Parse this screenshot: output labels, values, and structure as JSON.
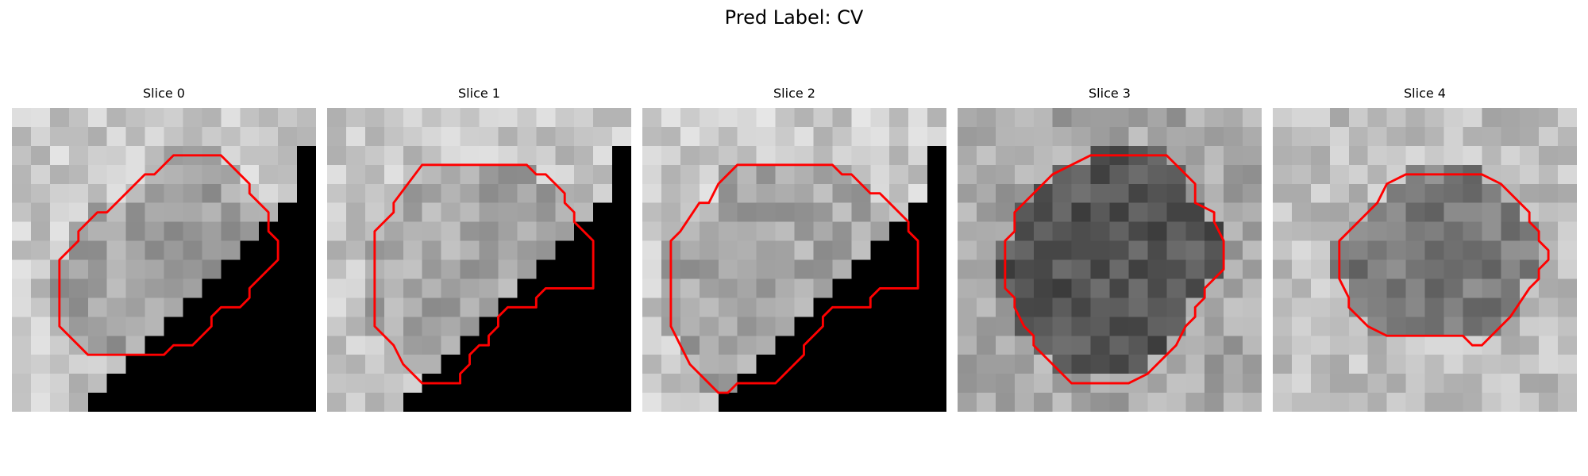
{
  "figure": {
    "title": "Pred Label: CV"
  },
  "panels": [
    {
      "title": "Slice 0",
      "shade": "#c8c8c8",
      "lesion": "#a2a2a2",
      "blocked": true,
      "contour": [
        [
          8.5,
          2.5
        ],
        [
          11,
          2.5
        ],
        [
          12.5,
          4
        ],
        [
          12.5,
          4.5
        ],
        [
          13.5,
          5.5
        ],
        [
          13.5,
          6.5
        ],
        [
          14,
          7
        ],
        [
          14,
          8
        ],
        [
          12.5,
          9.5
        ],
        [
          12.5,
          10
        ],
        [
          12,
          10.5
        ],
        [
          11,
          10.5
        ],
        [
          10.5,
          11
        ],
        [
          10.5,
          11.5
        ],
        [
          9.5,
          12.5
        ],
        [
          8.5,
          12.5
        ],
        [
          8,
          13
        ],
        [
          7.5,
          13
        ],
        [
          4,
          13
        ],
        [
          2.5,
          11.5
        ],
        [
          2.5,
          8
        ],
        [
          3.5,
          7
        ],
        [
          3.5,
          6.5
        ],
        [
          4.5,
          5.5
        ],
        [
          5,
          5.5
        ],
        [
          6.5,
          4
        ],
        [
          7,
          3.5
        ],
        [
          7.5,
          3.5
        ]
      ]
    },
    {
      "title": "Slice 1",
      "shade": "#c6c6c6",
      "lesion": "#a7a7a7",
      "blocked": true,
      "contour": [
        [
          5,
          3
        ],
        [
          10.5,
          3
        ],
        [
          11,
          3.5
        ],
        [
          11.5,
          3.5
        ],
        [
          12.5,
          4.5
        ],
        [
          12.5,
          5
        ],
        [
          13,
          5.5
        ],
        [
          13,
          6
        ],
        [
          14,
          7
        ],
        [
          14,
          9.5
        ],
        [
          11.5,
          9.5
        ],
        [
          11,
          10
        ],
        [
          11,
          10.5
        ],
        [
          9.5,
          10.5
        ],
        [
          9,
          11
        ],
        [
          9,
          11.5
        ],
        [
          8.5,
          12
        ],
        [
          8.5,
          12.5
        ],
        [
          8,
          12.5
        ],
        [
          7.5,
          13
        ],
        [
          7.5,
          13.5
        ],
        [
          7,
          14
        ],
        [
          7,
          14.5
        ],
        [
          5,
          14.5
        ],
        [
          4,
          13.5
        ],
        [
          3.5,
          12.5
        ],
        [
          2.5,
          11.5
        ],
        [
          2.5,
          10.5
        ],
        [
          2.5,
          6.5
        ],
        [
          3.5,
          5.5
        ],
        [
          3.5,
          5
        ]
      ]
    },
    {
      "title": "Slice 2",
      "shade": "#cbcbcb",
      "lesion": "#a6a6a6",
      "blocked": true,
      "contour": [
        [
          5,
          3
        ],
        [
          10,
          3
        ],
        [
          10.5,
          3.5
        ],
        [
          11,
          3.5
        ],
        [
          12,
          4.5
        ],
        [
          12.5,
          4.5
        ],
        [
          13,
          5
        ],
        [
          14,
          6
        ],
        [
          14,
          6.5
        ],
        [
          14.5,
          7
        ],
        [
          14.5,
          8
        ],
        [
          14.5,
          9.5
        ],
        [
          12.5,
          9.5
        ],
        [
          12,
          10
        ],
        [
          12,
          10.5
        ],
        [
          10,
          10.5
        ],
        [
          9.5,
          11
        ],
        [
          9.5,
          11.5
        ],
        [
          9,
          12
        ],
        [
          8.5,
          12.5
        ],
        [
          8.5,
          13
        ],
        [
          8,
          13.5
        ],
        [
          7,
          14.5
        ],
        [
          5,
          14.5
        ],
        [
          4.5,
          15
        ],
        [
          4,
          15
        ],
        [
          2.5,
          13.5
        ],
        [
          2,
          12.5
        ],
        [
          1.5,
          11.5
        ],
        [
          1.5,
          9
        ],
        [
          1.5,
          7
        ],
        [
          2,
          6.5
        ],
        [
          3,
          5
        ],
        [
          3.5,
          5
        ],
        [
          4,
          4
        ]
      ]
    },
    {
      "title": "Slice 3",
      "shade": "#a8a8a8",
      "lesion": "#565656",
      "blocked": false,
      "contour": [
        [
          7,
          2.5
        ],
        [
          11,
          2.5
        ],
        [
          12,
          3.5
        ],
        [
          12.5,
          4
        ],
        [
          12.5,
          5
        ],
        [
          13.5,
          5.5
        ],
        [
          13.5,
          6
        ],
        [
          14,
          7
        ],
        [
          14,
          8
        ],
        [
          14,
          8.5
        ],
        [
          13.5,
          9
        ],
        [
          13,
          9.5
        ],
        [
          13,
          10
        ],
        [
          12.5,
          10.5
        ],
        [
          12.5,
          11
        ],
        [
          12,
          11.5
        ],
        [
          11.5,
          12.5
        ],
        [
          11,
          13
        ],
        [
          10.5,
          13.5
        ],
        [
          10,
          14
        ],
        [
          9,
          14.5
        ],
        [
          6,
          14.5
        ],
        [
          5,
          13.5
        ],
        [
          4,
          12.5
        ],
        [
          4,
          12
        ],
        [
          3.5,
          11.5
        ],
        [
          3,
          10.5
        ],
        [
          3,
          10
        ],
        [
          2.5,
          9.5
        ],
        [
          2.5,
          8
        ],
        [
          2.5,
          7
        ],
        [
          3,
          6.5
        ],
        [
          3,
          5.5
        ],
        [
          4,
          4.5
        ],
        [
          5,
          3.5
        ],
        [
          6,
          3
        ]
      ]
    },
    {
      "title": "Slice 4",
      "shade": "#bebebe",
      "lesion": "#7c7c7c",
      "blocked": false,
      "contour": [
        [
          7,
          3.5
        ],
        [
          11,
          3.5
        ],
        [
          12,
          4
        ],
        [
          13.5,
          5.5
        ],
        [
          13.5,
          6
        ],
        [
          14,
          6.5
        ],
        [
          14,
          7
        ],
        [
          14.5,
          7.5
        ],
        [
          14.5,
          8
        ],
        [
          14,
          8.5
        ],
        [
          14,
          9
        ],
        [
          13.5,
          9.5
        ],
        [
          12.5,
          11
        ],
        [
          11.5,
          12
        ],
        [
          11,
          12.5
        ],
        [
          10.5,
          12.5
        ],
        [
          10,
          12
        ],
        [
          6,
          12
        ],
        [
          5,
          11.5
        ],
        [
          4,
          10.5
        ],
        [
          4,
          10
        ],
        [
          3.5,
          9
        ],
        [
          3.5,
          8
        ],
        [
          3.5,
          7
        ],
        [
          4.5,
          6
        ],
        [
          5,
          5.5
        ],
        [
          5.5,
          5
        ],
        [
          6,
          4
        ]
      ]
    }
  ]
}
